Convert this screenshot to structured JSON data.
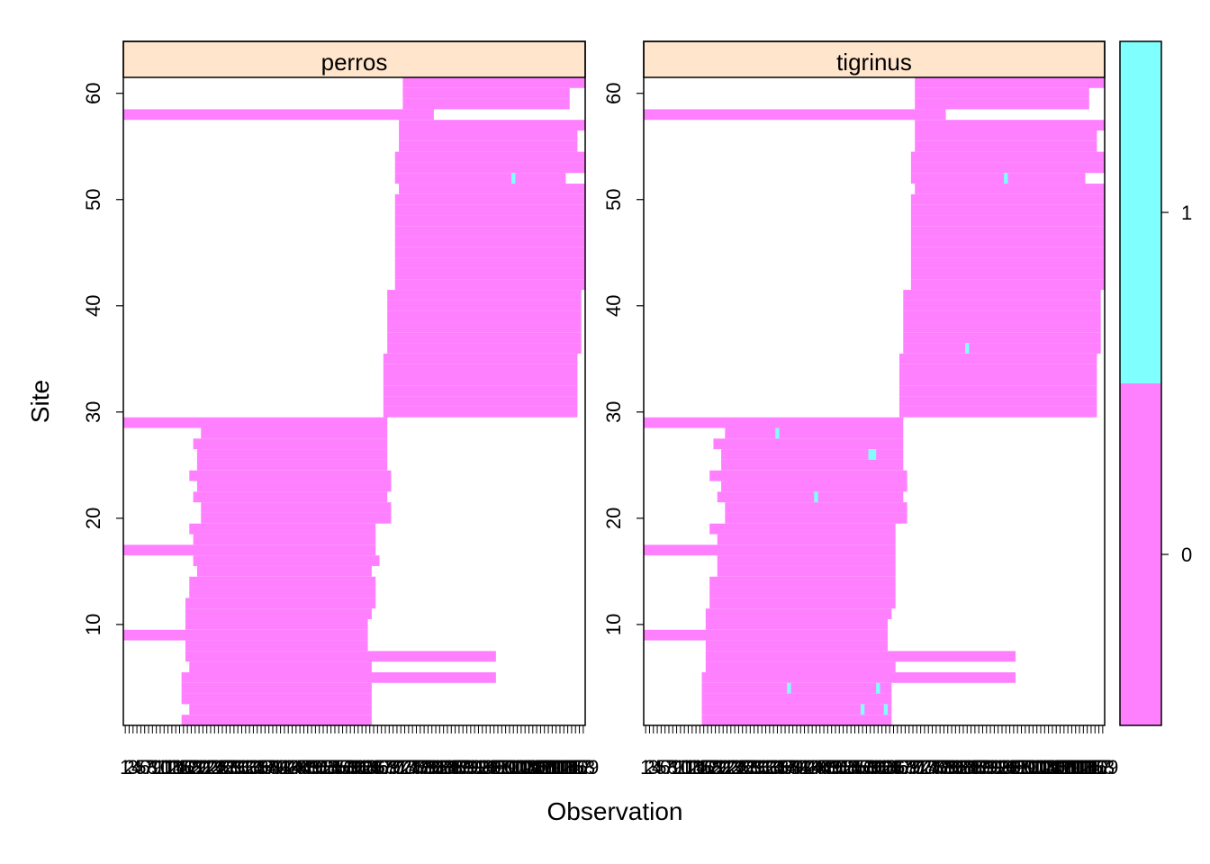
{
  "chart_data": {
    "type": "heatmap",
    "xlabel": "Observation",
    "ylabel": "Site",
    "y_ticks": [
      10,
      20,
      30,
      40,
      50,
      60
    ],
    "ylim": [
      0.5,
      61.5
    ],
    "xlim": [
      0.5,
      119.5
    ],
    "x_tick_count": 119,
    "x_tick_labels_overprinted": true,
    "panels": [
      {
        "name": "perros",
        "ranges": [
          {
            "site": 1,
            "from": 16,
            "to": 64,
            "value": 0
          },
          {
            "site": 2,
            "from": 18,
            "to": 64,
            "value": 0
          },
          {
            "site": 3,
            "from": 16,
            "to": 64,
            "value": 0
          },
          {
            "site": 4,
            "from": 16,
            "to": 64,
            "value": 0
          },
          {
            "site": 5,
            "from": 16,
            "to": 96,
            "value": 0
          },
          {
            "site": 6,
            "from": 18,
            "to": 64,
            "value": 0
          },
          {
            "site": 7,
            "from": 17,
            "to": 96,
            "value": 0
          },
          {
            "site": 8,
            "from": 17,
            "to": 63,
            "value": 0
          },
          {
            "site": 9,
            "from": 1,
            "to": 63,
            "value": 0
          },
          {
            "site": 10,
            "from": 17,
            "to": 63,
            "value": 0
          },
          {
            "site": 11,
            "from": 17,
            "to": 64,
            "value": 0
          },
          {
            "site": 12,
            "from": 17,
            "to": 65,
            "value": 0
          },
          {
            "site": 13,
            "from": 18,
            "to": 65,
            "value": 0
          },
          {
            "site": 14,
            "from": 18,
            "to": 65,
            "value": 0
          },
          {
            "site": 15,
            "from": 20,
            "to": 64,
            "value": 0
          },
          {
            "site": 16,
            "from": 19,
            "to": 66,
            "value": 0
          },
          {
            "site": 17,
            "from": 1,
            "to": 65,
            "value": 0
          },
          {
            "site": 18,
            "from": 19,
            "to": 65,
            "value": 0
          },
          {
            "site": 19,
            "from": 18,
            "to": 65,
            "value": 0
          },
          {
            "site": 20,
            "from": 21,
            "to": 69,
            "value": 0
          },
          {
            "site": 21,
            "from": 21,
            "to": 69,
            "value": 0
          },
          {
            "site": 22,
            "from": 19,
            "to": 68,
            "value": 0
          },
          {
            "site": 23,
            "from": 20,
            "to": 69,
            "value": 0
          },
          {
            "site": 24,
            "from": 18,
            "to": 69,
            "value": 0
          },
          {
            "site": 25,
            "from": 20,
            "to": 68,
            "value": 0
          },
          {
            "site": 26,
            "from": 20,
            "to": 68,
            "value": 0
          },
          {
            "site": 27,
            "from": 19,
            "to": 68,
            "value": 0
          },
          {
            "site": 28,
            "from": 21,
            "to": 68,
            "value": 0
          },
          {
            "site": 29,
            "from": 1,
            "to": 68,
            "value": 0
          },
          {
            "site": 30,
            "from": 68,
            "to": 117,
            "value": 0
          },
          {
            "site": 31,
            "from": 68,
            "to": 117,
            "value": 0
          },
          {
            "site": 32,
            "from": 68,
            "to": 117,
            "value": 0
          },
          {
            "site": 33,
            "from": 68,
            "to": 117,
            "value": 0
          },
          {
            "site": 34,
            "from": 68,
            "to": 117,
            "value": 0
          },
          {
            "site": 35,
            "from": 68,
            "to": 117,
            "value": 0
          },
          {
            "site": 36,
            "from": 69,
            "to": 118,
            "value": 0
          },
          {
            "site": 37,
            "from": 69,
            "to": 118,
            "value": 0
          },
          {
            "site": 38,
            "from": 69,
            "to": 118,
            "value": 0
          },
          {
            "site": 39,
            "from": 69,
            "to": 118,
            "value": 0
          },
          {
            "site": 40,
            "from": 69,
            "to": 118,
            "value": 0
          },
          {
            "site": 41,
            "from": 69,
            "to": 118,
            "value": 0
          },
          {
            "site": 42,
            "from": 71,
            "to": 119,
            "value": 0
          },
          {
            "site": 43,
            "from": 71,
            "to": 119,
            "value": 0
          },
          {
            "site": 44,
            "from": 71,
            "to": 119,
            "value": 0
          },
          {
            "site": 45,
            "from": 71,
            "to": 119,
            "value": 0
          },
          {
            "site": 46,
            "from": 71,
            "to": 119,
            "value": 0
          },
          {
            "site": 47,
            "from": 71,
            "to": 119,
            "value": 0
          },
          {
            "site": 48,
            "from": 71,
            "to": 119,
            "value": 0
          },
          {
            "site": 49,
            "from": 71,
            "to": 119,
            "value": 0
          },
          {
            "site": 50,
            "from": 71,
            "to": 119,
            "value": 0
          },
          {
            "site": 51,
            "from": 72,
            "to": 119,
            "value": 0
          },
          {
            "site": 52,
            "from": 71,
            "to": 114,
            "value": 0
          },
          {
            "site": 53,
            "from": 71,
            "to": 119,
            "value": 0
          },
          {
            "site": 54,
            "from": 71,
            "to": 119,
            "value": 0
          },
          {
            "site": 55,
            "from": 72,
            "to": 117,
            "value": 0
          },
          {
            "site": 56,
            "from": 72,
            "to": 117,
            "value": 0
          },
          {
            "site": 57,
            "from": 72,
            "to": 119,
            "value": 0
          },
          {
            "site": 58,
            "from": 1,
            "to": 80,
            "value": 0
          },
          {
            "site": 59,
            "from": 73,
            "to": 115,
            "value": 0
          },
          {
            "site": 60,
            "from": 73,
            "to": 115,
            "value": 0
          },
          {
            "site": 61,
            "from": 73,
            "to": 119,
            "value": 0
          }
        ],
        "detections": [
          {
            "site": 52,
            "obs": 101,
            "value": 1
          }
        ]
      },
      {
        "name": "tigrinus",
        "ranges": [
          {
            "site": 1,
            "from": 16,
            "to": 64,
            "value": 0
          },
          {
            "site": 2,
            "from": 16,
            "to": 64,
            "value": 0
          },
          {
            "site": 3,
            "from": 16,
            "to": 64,
            "value": 0
          },
          {
            "site": 4,
            "from": 16,
            "to": 64,
            "value": 0
          },
          {
            "site": 5,
            "from": 16,
            "to": 96,
            "value": 0
          },
          {
            "site": 6,
            "from": 17,
            "to": 65,
            "value": 0
          },
          {
            "site": 7,
            "from": 17,
            "to": 96,
            "value": 0
          },
          {
            "site": 8,
            "from": 17,
            "to": 63,
            "value": 0
          },
          {
            "site": 9,
            "from": 1,
            "to": 63,
            "value": 0
          },
          {
            "site": 10,
            "from": 17,
            "to": 63,
            "value": 0
          },
          {
            "site": 11,
            "from": 17,
            "to": 64,
            "value": 0
          },
          {
            "site": 12,
            "from": 18,
            "to": 65,
            "value": 0
          },
          {
            "site": 13,
            "from": 18,
            "to": 65,
            "value": 0
          },
          {
            "site": 14,
            "from": 18,
            "to": 65,
            "value": 0
          },
          {
            "site": 15,
            "from": 20,
            "to": 65,
            "value": 0
          },
          {
            "site": 16,
            "from": 20,
            "to": 65,
            "value": 0
          },
          {
            "site": 17,
            "from": 1,
            "to": 65,
            "value": 0
          },
          {
            "site": 18,
            "from": 20,
            "to": 65,
            "value": 0
          },
          {
            "site": 19,
            "from": 18,
            "to": 65,
            "value": 0
          },
          {
            "site": 20,
            "from": 22,
            "to": 68,
            "value": 0
          },
          {
            "site": 21,
            "from": 22,
            "to": 68,
            "value": 0
          },
          {
            "site": 22,
            "from": 20,
            "to": 67,
            "value": 0
          },
          {
            "site": 23,
            "from": 21,
            "to": 68,
            "value": 0
          },
          {
            "site": 24,
            "from": 18,
            "to": 68,
            "value": 0
          },
          {
            "site": 25,
            "from": 21,
            "to": 67,
            "value": 0
          },
          {
            "site": 26,
            "from": 21,
            "to": 67,
            "value": 0
          },
          {
            "site": 27,
            "from": 19,
            "to": 67,
            "value": 0
          },
          {
            "site": 28,
            "from": 22,
            "to": 67,
            "value": 0
          },
          {
            "site": 29,
            "from": 1,
            "to": 67,
            "value": 0
          },
          {
            "site": 30,
            "from": 67,
            "to": 117,
            "value": 0
          },
          {
            "site": 31,
            "from": 67,
            "to": 117,
            "value": 0
          },
          {
            "site": 32,
            "from": 67,
            "to": 117,
            "value": 0
          },
          {
            "site": 33,
            "from": 67,
            "to": 117,
            "value": 0
          },
          {
            "site": 34,
            "from": 67,
            "to": 117,
            "value": 0
          },
          {
            "site": 35,
            "from": 67,
            "to": 117,
            "value": 0
          },
          {
            "site": 36,
            "from": 68,
            "to": 118,
            "value": 0
          },
          {
            "site": 37,
            "from": 68,
            "to": 118,
            "value": 0
          },
          {
            "site": 38,
            "from": 68,
            "to": 118,
            "value": 0
          },
          {
            "site": 39,
            "from": 68,
            "to": 118,
            "value": 0
          },
          {
            "site": 40,
            "from": 68,
            "to": 118,
            "value": 0
          },
          {
            "site": 41,
            "from": 68,
            "to": 118,
            "value": 0
          },
          {
            "site": 42,
            "from": 70,
            "to": 119,
            "value": 0
          },
          {
            "site": 43,
            "from": 70,
            "to": 119,
            "value": 0
          },
          {
            "site": 44,
            "from": 70,
            "to": 119,
            "value": 0
          },
          {
            "site": 45,
            "from": 70,
            "to": 119,
            "value": 0
          },
          {
            "site": 46,
            "from": 70,
            "to": 119,
            "value": 0
          },
          {
            "site": 47,
            "from": 70,
            "to": 119,
            "value": 0
          },
          {
            "site": 48,
            "from": 70,
            "to": 119,
            "value": 0
          },
          {
            "site": 49,
            "from": 70,
            "to": 119,
            "value": 0
          },
          {
            "site": 50,
            "from": 70,
            "to": 119,
            "value": 0
          },
          {
            "site": 51,
            "from": 71,
            "to": 119,
            "value": 0
          },
          {
            "site": 52,
            "from": 70,
            "to": 114,
            "value": 0
          },
          {
            "site": 53,
            "from": 70,
            "to": 119,
            "value": 0
          },
          {
            "site": 54,
            "from": 70,
            "to": 119,
            "value": 0
          },
          {
            "site": 55,
            "from": 71,
            "to": 117,
            "value": 0
          },
          {
            "site": 56,
            "from": 71,
            "to": 117,
            "value": 0
          },
          {
            "site": 57,
            "from": 71,
            "to": 119,
            "value": 0
          },
          {
            "site": 58,
            "from": 1,
            "to": 78,
            "value": 0
          },
          {
            "site": 59,
            "from": 71,
            "to": 115,
            "value": 0
          },
          {
            "site": 60,
            "from": 71,
            "to": 115,
            "value": 0
          },
          {
            "site": 61,
            "from": 71,
            "to": 119,
            "value": 0
          }
        ],
        "detections": [
          {
            "site": 2,
            "obs": 57,
            "value": 1
          },
          {
            "site": 2,
            "obs": 63,
            "value": 1
          },
          {
            "site": 4,
            "obs": 38,
            "value": 1
          },
          {
            "site": 4,
            "obs": 61,
            "value": 1
          },
          {
            "site": 22,
            "obs": 45,
            "value": 1
          },
          {
            "site": 26,
            "obs": 59,
            "value": 1
          },
          {
            "site": 26,
            "obs": 60,
            "value": 1
          },
          {
            "site": 28,
            "obs": 35,
            "value": 1
          },
          {
            "site": 36,
            "obs": 84,
            "value": 1
          },
          {
            "site": 52,
            "obs": 94,
            "value": 1
          }
        ]
      }
    ],
    "colorkey": {
      "ticks": [
        0,
        1
      ],
      "range": [
        -0.5,
        1.5
      ],
      "colors": [
        "#FF80FF",
        "#80FFFF"
      ]
    },
    "colors": {
      "strip": "#FFE5CC",
      "zero": "#FF80FF",
      "one": "#80FFFF"
    }
  }
}
